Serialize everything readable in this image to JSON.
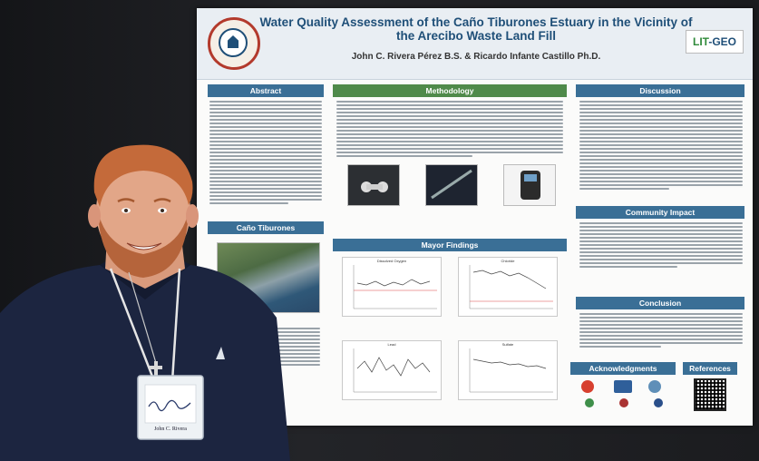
{
  "poster": {
    "title": "Water Quality Assessment of the Caño Tiburones Estuary in the Vicinity of the Arecibo Waste Land Fill",
    "authors": "John C. Rivera Pérez B.S. & Ricardo Infante Castillo Ph.D.",
    "logo_text": "LIT-GEO",
    "sections": {
      "abstract": "Abstract",
      "site": "Caño Tiburones",
      "methodology": "Methodology",
      "findings": "Mayor Findings",
      "discussion": "Discussion",
      "community": "Community Impact",
      "conclusion": "Conclusion",
      "acknowledgments": "Acknowledgments",
      "references": "References"
    },
    "charts": {
      "oxygen": "Dissolved Oxygen",
      "chloride": "Chloride",
      "lead": "Lead",
      "sulfate": "Sulfate"
    }
  },
  "badge": {
    "name": "John C. Rivera"
  }
}
